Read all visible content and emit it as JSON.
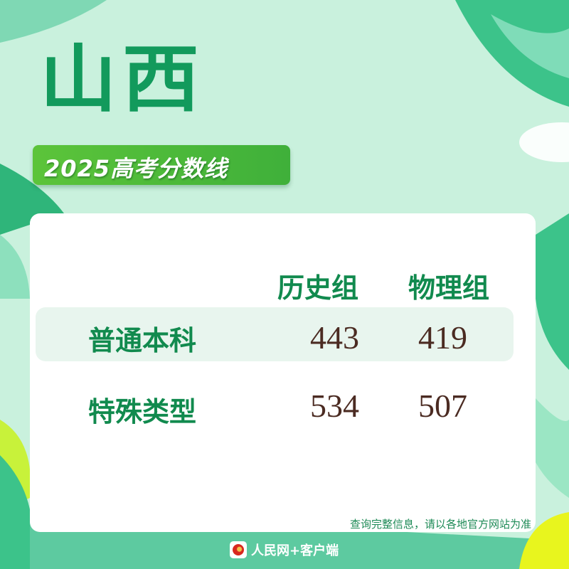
{
  "title": "山西",
  "subtitle": "2025高考分数线",
  "table": {
    "columns": [
      "历史组",
      "物理组"
    ],
    "rows": [
      {
        "label": "普通本科",
        "values": [
          "443",
          "419"
        ],
        "highlighted": true
      },
      {
        "label": "特殊类型",
        "values": [
          "534",
          "507"
        ],
        "highlighted": false
      }
    ]
  },
  "note": "查询完整信息，请以各地官方网站为准",
  "footer": {
    "brand": "人民网+客户端",
    "icon": "people-daily-logo-icon"
  },
  "colors": {
    "background": "#c9f1dd",
    "accent_green": "#129a5c",
    "badge_green": "#4fbb3a",
    "number": "#4b2b22"
  }
}
